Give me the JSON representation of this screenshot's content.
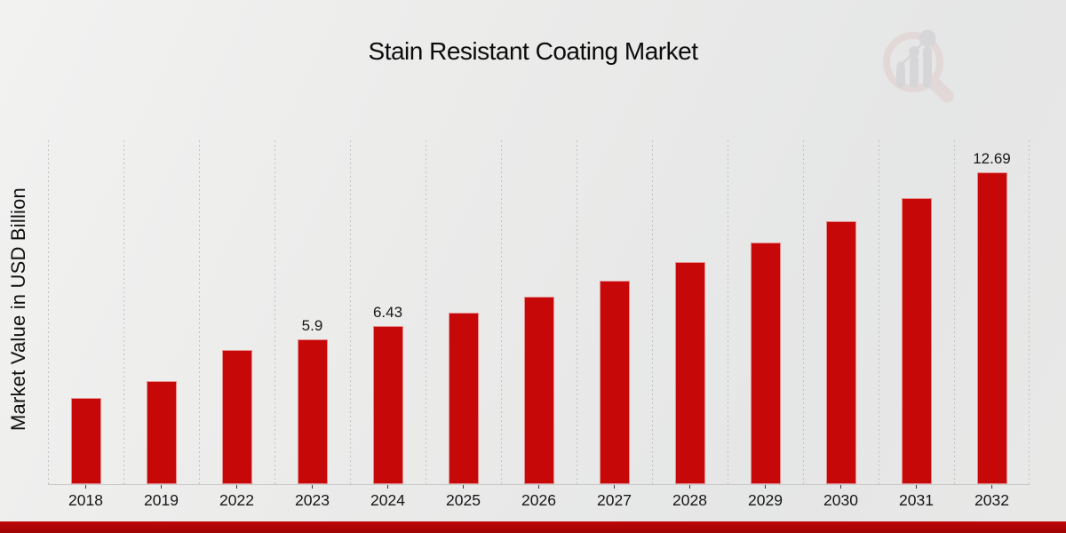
{
  "title": "Stain Resistant Coating Market",
  "y_axis_label": "Market Value in USD Billion",
  "colors": {
    "bar": "#c60808",
    "footer_band": "#b20505",
    "background": "#eaeaea",
    "gridline": "#c2c2c2",
    "text": "#111111",
    "watermark_pink": "#e2cbcb",
    "watermark_gray": "#c8c8cb"
  },
  "icons": {
    "watermark": "magnifier-bar-chart-logo"
  },
  "chart_data": {
    "type": "bar",
    "title": "Stain Resistant Coating Market",
    "xlabel": "",
    "ylabel": "Market Value in USD Billion",
    "categories": [
      "2018",
      "2019",
      "2022",
      "2023",
      "2024",
      "2025",
      "2026",
      "2027",
      "2028",
      "2029",
      "2030",
      "2031",
      "2032"
    ],
    "values": [
      3.5,
      4.2,
      5.45,
      5.9,
      6.43,
      7.0,
      7.62,
      8.3,
      9.04,
      9.84,
      10.71,
      11.66,
      12.69
    ],
    "data_labels": {
      "2023": "5.9",
      "2024": "6.43",
      "2032": "12.69"
    },
    "ylim": [
      0,
      14
    ],
    "grid": "vertical-dashed",
    "legend": "none",
    "bar_color": "#c60808"
  }
}
